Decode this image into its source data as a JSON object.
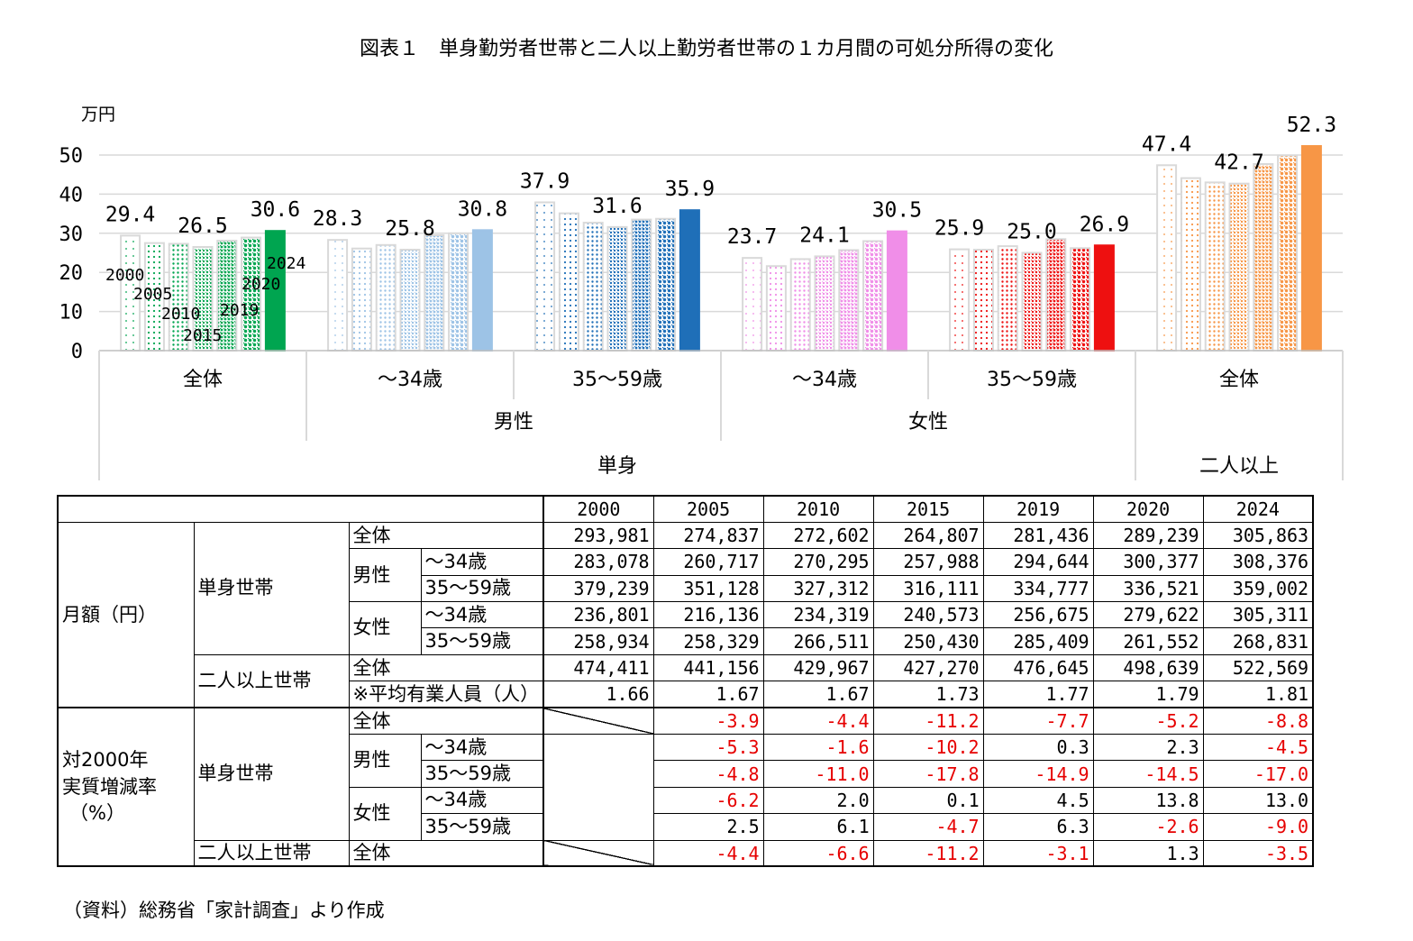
{
  "title": "図表１　単身勤労者世帯と二人以上勤労者世帯の１カ月間の可処分所得の変化",
  "source": "（資料）総務省「家計調査」より作成",
  "chart_data": {
    "type": "bar",
    "y_unit_label": "万円",
    "ylim": [
      0,
      55
    ],
    "yticks": [
      0,
      10,
      20,
      30,
      40,
      50
    ],
    "grid": true,
    "years": [
      "2000",
      "2005",
      "2010",
      "2015",
      "2019",
      "2020",
      "2024"
    ],
    "groups": [
      {
        "label": "全体",
        "values": [
          29.4,
          27.5,
          27.3,
          26.5,
          28.1,
          28.9,
          30.6
        ],
        "color": "#00a550",
        "shown_labels": [
          "29.4",
          "26.5",
          "30.6"
        ]
      },
      {
        "label": "～34歳",
        "values": [
          28.3,
          26.1,
          27.0,
          25.8,
          29.5,
          30.0,
          30.8
        ],
        "color": "#9dc3e6",
        "shown_labels": [
          "28.3",
          "25.8",
          "30.8"
        ]
      },
      {
        "label": "35～59歳",
        "values": [
          37.9,
          35.1,
          32.7,
          31.6,
          33.5,
          33.7,
          35.9
        ],
        "color": "#1f6fb8",
        "shown_labels": [
          "37.9",
          "31.6",
          "35.9"
        ]
      },
      {
        "label": "～34歳",
        "values": [
          23.7,
          21.6,
          23.4,
          24.1,
          25.7,
          28.0,
          30.5
        ],
        "color": "#f08ee8",
        "shown_labels": [
          "23.7",
          "24.1",
          "30.5"
        ]
      },
      {
        "label": "35～59歳",
        "values": [
          25.9,
          25.8,
          26.7,
          25.0,
          28.5,
          26.2,
          26.9
        ],
        "color": "#ee1010",
        "shown_labels": [
          "25.9",
          "25.0",
          "26.9"
        ]
      },
      {
        "label": "全体",
        "values": [
          47.4,
          44.1,
          43.0,
          42.7,
          47.7,
          49.9,
          52.3
        ],
        "color": "#f79646",
        "shown_labels": [
          "47.4",
          "42.7",
          "52.3"
        ]
      }
    ],
    "mid_labels": [
      {
        "label": "男性",
        "groups": [
          1,
          2
        ]
      },
      {
        "label": "女性",
        "groups": [
          3,
          4
        ]
      }
    ],
    "top_labels": [
      {
        "label": "単身",
        "groups": [
          0,
          1,
          2,
          3,
          4
        ]
      },
      {
        "label": "二人以上",
        "groups": [
          5
        ]
      }
    ]
  },
  "table": {
    "years": [
      "2000",
      "2005",
      "2010",
      "2015",
      "2019",
      "2020",
      "2024"
    ],
    "monthly_label": "月額（円）",
    "rate_label_lines": [
      "対2000年",
      "実質増減率",
      "（%）"
    ],
    "single_label": "単身世帯",
    "multi_label": "二人以上世帯",
    "male": "男性",
    "female": "女性",
    "all": "全体",
    "age34": "～34歳",
    "age35_59": "35～59歳",
    "earners_label": "※平均有業人員（人）",
    "monthly": {
      "single_all": [
        "293,981",
        "274,837",
        "272,602",
        "264,807",
        "281,436",
        "289,239",
        "305,863"
      ],
      "male_34": [
        "283,078",
        "260,717",
        "270,295",
        "257,988",
        "294,644",
        "300,377",
        "308,376"
      ],
      "male_35_59": [
        "379,239",
        "351,128",
        "327,312",
        "316,111",
        "334,777",
        "336,521",
        "359,002"
      ],
      "female_34": [
        "236,801",
        "216,136",
        "234,319",
        "240,573",
        "256,675",
        "279,622",
        "305,311"
      ],
      "female_35_59": [
        "258,934",
        "258,329",
        "266,511",
        "250,430",
        "285,409",
        "261,552",
        "268,831"
      ],
      "multi_all": [
        "474,411",
        "441,156",
        "429,967",
        "427,270",
        "476,645",
        "498,639",
        "522,569"
      ],
      "multi_earners": [
        "1.66",
        "1.67",
        "1.67",
        "1.73",
        "1.77",
        "1.79",
        "1.81"
      ]
    },
    "rates": {
      "single_all": [
        "-3.9",
        "-4.4",
        "-11.2",
        "-7.7",
        "-5.2",
        "-8.8"
      ],
      "male_34": [
        "-5.3",
        "-1.6",
        "-10.2",
        "0.3",
        "2.3",
        "-4.5"
      ],
      "male_35_59": [
        "-4.8",
        "-11.0",
        "-17.8",
        "-14.9",
        "-14.5",
        "-17.0"
      ],
      "female_34": [
        "-6.2",
        "2.0",
        "0.1",
        "4.5",
        "13.8",
        "13.0"
      ],
      "female_35_59": [
        "2.5",
        "6.1",
        "-4.7",
        "6.3",
        "-2.6",
        "-9.0"
      ],
      "multi_all": [
        "-4.4",
        "-6.6",
        "-11.2",
        "-3.1",
        "1.3",
        "-3.5"
      ]
    },
    "negative_color": "#e60000"
  }
}
